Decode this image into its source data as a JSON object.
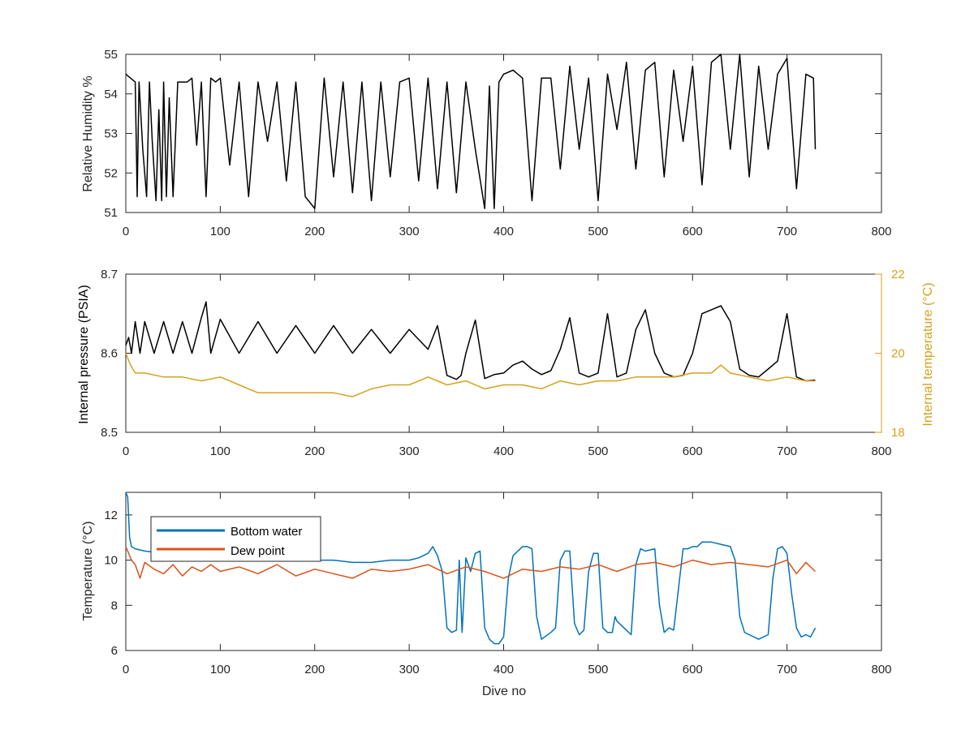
{
  "chart_data": [
    {
      "type": "line",
      "xlabel": "",
      "ylabel": "Relative Humidity %",
      "xlim": [
        0,
        800
      ],
      "ylim": [
        51,
        55
      ],
      "xticks": [
        0,
        100,
        200,
        300,
        400,
        500,
        600,
        700,
        800
      ],
      "yticks": [
        51,
        52,
        53,
        54,
        55
      ],
      "grid": false,
      "series": [
        {
          "color": "#000000",
          "x": [
            0,
            5,
            10,
            12,
            14,
            18,
            22,
            25,
            28,
            32,
            35,
            38,
            40,
            43,
            46,
            50,
            55,
            60,
            65,
            70,
            75,
            80,
            85,
            90,
            95,
            100,
            110,
            120,
            130,
            140,
            150,
            160,
            170,
            180,
            190,
            200,
            210,
            220,
            230,
            240,
            250,
            260,
            270,
            280,
            290,
            300,
            310,
            320,
            330,
            340,
            350,
            360,
            370,
            380,
            385,
            390,
            395,
            400,
            410,
            420,
            430,
            440,
            450,
            460,
            470,
            480,
            490,
            500,
            510,
            520,
            530,
            540,
            550,
            560,
            570,
            580,
            590,
            600,
            610,
            620,
            630,
            640,
            650,
            660,
            670,
            680,
            690,
            700,
            710,
            720,
            728,
            730
          ],
          "values": [
            54.5,
            54.4,
            54.3,
            51.4,
            54.3,
            52.6,
            51.4,
            54.3,
            52.8,
            51.3,
            53.6,
            51.3,
            54.3,
            51.4,
            53.9,
            51.4,
            54.3,
            54.3,
            54.3,
            54.4,
            52.7,
            54.3,
            51.4,
            54.4,
            54.3,
            54.4,
            52.2,
            54.3,
            51.4,
            54.3,
            52.8,
            54.3,
            51.8,
            54.3,
            51.4,
            51.1,
            54.4,
            51.9,
            54.3,
            51.5,
            54.3,
            51.3,
            54.3,
            51.9,
            54.3,
            54.4,
            51.8,
            54.4,
            51.6,
            54.3,
            51.5,
            54.3,
            52.6,
            51.1,
            54.2,
            51.1,
            54.3,
            54.5,
            54.6,
            54.4,
            51.3,
            54.4,
            54.4,
            52.1,
            54.7,
            52.6,
            54.4,
            51.3,
            54.5,
            53.1,
            54.8,
            52.1,
            54.6,
            54.8,
            51.9,
            54.6,
            52.8,
            54.7,
            51.7,
            54.8,
            55.0,
            52.6,
            55.0,
            51.9,
            54.7,
            52.6,
            54.5,
            54.9,
            51.6,
            54.5,
            54.4,
            52.6
          ]
        }
      ]
    },
    {
      "type": "line",
      "xlabel": "",
      "ylabel": "Internal pressure (PSIA)",
      "y2label": "Internal temperature (°C)",
      "xlim": [
        0,
        800
      ],
      "ylim": [
        8.5,
        8.7
      ],
      "y2lim": [
        18,
        22
      ],
      "xticks": [
        0,
        100,
        200,
        300,
        400,
        500,
        600,
        700,
        800
      ],
      "yticks": [
        8.5,
        8.6,
        8.7
      ],
      "y2ticks": [
        18,
        20,
        22
      ],
      "y2color": "#d4a21d",
      "grid": false,
      "series": [
        {
          "color": "#000000",
          "axis": "left",
          "x": [
            0,
            3,
            6,
            10,
            15,
            20,
            30,
            40,
            50,
            60,
            70,
            80,
            85,
            90,
            100,
            120,
            140,
            160,
            180,
            200,
            220,
            240,
            260,
            280,
            300,
            320,
            330,
            340,
            350,
            355,
            360,
            370,
            380,
            390,
            400,
            410,
            420,
            430,
            440,
            450,
            460,
            470,
            480,
            490,
            500,
            510,
            520,
            530,
            540,
            550,
            560,
            570,
            580,
            590,
            600,
            610,
            620,
            630,
            640,
            650,
            660,
            670,
            680,
            690,
            700,
            710,
            720,
            730
          ],
          "values": [
            8.61,
            8.62,
            8.6,
            8.64,
            8.6,
            8.64,
            8.6,
            8.64,
            8.6,
            8.64,
            8.6,
            8.645,
            8.665,
            8.6,
            8.643,
            8.6,
            8.64,
            8.6,
            8.635,
            8.6,
            8.635,
            8.6,
            8.63,
            8.6,
            8.63,
            8.605,
            8.635,
            8.572,
            8.567,
            8.572,
            8.6,
            8.642,
            8.568,
            8.573,
            8.575,
            8.585,
            8.59,
            8.58,
            8.573,
            8.578,
            8.605,
            8.645,
            8.575,
            8.57,
            8.575,
            8.65,
            8.57,
            8.575,
            8.63,
            8.655,
            8.6,
            8.575,
            8.57,
            8.572,
            8.6,
            8.65,
            8.655,
            8.66,
            8.64,
            8.58,
            8.572,
            8.57,
            8.58,
            8.59,
            8.65,
            8.57,
            8.565,
            8.566
          ]
        },
        {
          "color": "#d4a21d",
          "axis": "right",
          "x": [
            0,
            5,
            10,
            20,
            40,
            60,
            80,
            100,
            120,
            140,
            160,
            180,
            200,
            220,
            240,
            260,
            280,
            300,
            320,
            340,
            360,
            380,
            400,
            420,
            440,
            460,
            480,
            500,
            520,
            540,
            560,
            580,
            600,
            620,
            630,
            640,
            660,
            680,
            700,
            720,
            730
          ],
          "values": [
            20.0,
            19.7,
            19.5,
            19.5,
            19.4,
            19.4,
            19.3,
            19.4,
            19.2,
            19.0,
            19.0,
            19.0,
            19.0,
            19.0,
            18.9,
            19.1,
            19.2,
            19.2,
            19.4,
            19.2,
            19.3,
            19.1,
            19.2,
            19.2,
            19.1,
            19.3,
            19.2,
            19.3,
            19.3,
            19.4,
            19.4,
            19.4,
            19.5,
            19.5,
            19.7,
            19.5,
            19.4,
            19.3,
            19.4,
            19.3,
            19.3
          ]
        }
      ]
    },
    {
      "type": "line",
      "xlabel": "Dive no",
      "ylabel": "Temperature (°C)",
      "xlim": [
        0,
        800
      ],
      "ylim": [
        6,
        13
      ],
      "xticks": [
        0,
        100,
        200,
        300,
        400,
        500,
        600,
        700,
        800
      ],
      "yticks": [
        6,
        8,
        10,
        12
      ],
      "grid": false,
      "legend_position": "top-left",
      "series": [
        {
          "name": "Bottom water",
          "color": "#0072bd",
          "x": [
            0,
            2,
            4,
            6,
            10,
            20,
            40,
            60,
            80,
            100,
            120,
            140,
            160,
            180,
            200,
            220,
            240,
            260,
            280,
            300,
            310,
            320,
            325,
            330,
            335,
            340,
            345,
            350,
            353,
            356,
            360,
            365,
            370,
            375,
            380,
            385,
            390,
            395,
            400,
            405,
            410,
            420,
            425,
            430,
            435,
            440,
            450,
            455,
            460,
            465,
            470,
            475,
            480,
            485,
            490,
            495,
            500,
            505,
            510,
            515,
            518,
            520,
            530,
            535,
            540,
            545,
            550,
            560,
            565,
            570,
            575,
            580,
            590,
            595,
            600,
            605,
            610,
            620,
            630,
            640,
            645,
            650,
            655,
            660,
            670,
            680,
            685,
            690,
            695,
            700,
            705,
            710,
            715,
            720,
            725,
            730
          ],
          "values": [
            13.0,
            12.8,
            11.0,
            10.6,
            10.5,
            10.4,
            10.3,
            10.3,
            10.3,
            10.3,
            10.2,
            10.2,
            10.1,
            10.0,
            10.0,
            10.0,
            9.9,
            9.9,
            10.0,
            10.0,
            10.1,
            10.3,
            10.6,
            10.2,
            9.5,
            7.0,
            6.8,
            6.9,
            10.0,
            6.8,
            10.1,
            9.5,
            10.3,
            10.4,
            7.0,
            6.5,
            6.3,
            6.3,
            6.6,
            9.2,
            10.2,
            10.6,
            10.6,
            10.5,
            7.5,
            6.5,
            6.8,
            7.0,
            10.0,
            10.4,
            10.4,
            7.2,
            6.7,
            6.9,
            9.5,
            10.3,
            10.3,
            7.0,
            6.8,
            6.8,
            7.5,
            7.3,
            6.9,
            6.7,
            9.8,
            10.5,
            10.4,
            10.5,
            8.0,
            6.8,
            7.0,
            6.9,
            10.5,
            10.5,
            10.6,
            10.6,
            10.8,
            10.8,
            10.7,
            10.6,
            10.0,
            7.5,
            6.8,
            6.7,
            6.5,
            6.7,
            9.2,
            10.5,
            10.6,
            10.3,
            8.5,
            7.0,
            6.6,
            6.7,
            6.6,
            7.0
          ]
        },
        {
          "name": "Dew point",
          "color": "#d95319",
          "x": [
            0,
            3,
            6,
            10,
            15,
            20,
            30,
            40,
            50,
            60,
            70,
            80,
            90,
            100,
            120,
            140,
            160,
            180,
            200,
            220,
            240,
            260,
            280,
            300,
            320,
            340,
            360,
            380,
            400,
            420,
            440,
            460,
            480,
            500,
            520,
            540,
            560,
            580,
            600,
            620,
            640,
            660,
            680,
            700,
            710,
            720,
            730
          ],
          "values": [
            10.6,
            10.3,
            10.0,
            9.8,
            9.2,
            9.9,
            9.6,
            9.4,
            9.8,
            9.3,
            9.7,
            9.5,
            9.8,
            9.5,
            9.7,
            9.4,
            9.8,
            9.3,
            9.6,
            9.4,
            9.2,
            9.6,
            9.5,
            9.6,
            9.8,
            9.4,
            9.7,
            9.5,
            9.2,
            9.6,
            9.5,
            9.7,
            9.6,
            9.8,
            9.5,
            9.8,
            9.9,
            9.7,
            10.0,
            9.8,
            9.9,
            9.8,
            9.7,
            10.0,
            9.4,
            9.9,
            9.5
          ]
        }
      ]
    }
  ]
}
